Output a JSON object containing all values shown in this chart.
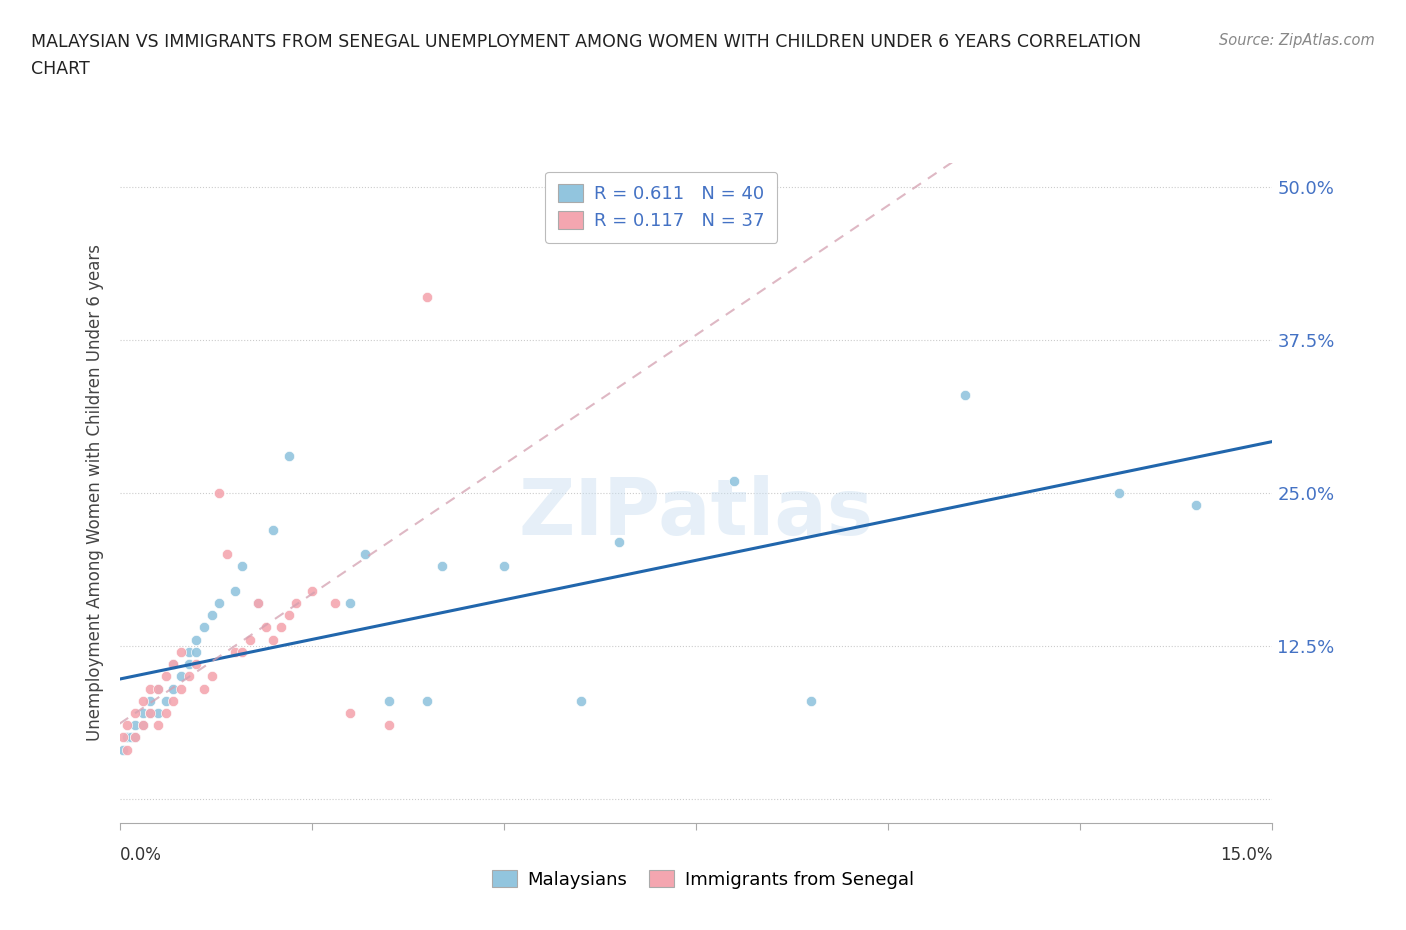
{
  "title_line1": "MALAYSIAN VS IMMIGRANTS FROM SENEGAL UNEMPLOYMENT AMONG WOMEN WITH CHILDREN UNDER 6 YEARS CORRELATION",
  "title_line2": "CHART",
  "source": "Source: ZipAtlas.com",
  "ylabel": "Unemployment Among Women with Children Under 6 years",
  "xlim": [
    0.0,
    0.15
  ],
  "ylim": [
    -0.02,
    0.52
  ],
  "yticks": [
    0.0,
    0.125,
    0.25,
    0.375,
    0.5
  ],
  "ytick_labels": [
    "",
    "12.5%",
    "25.0%",
    "37.5%",
    "50.0%"
  ],
  "watermark": "ZIPatlas",
  "blue_R": 0.611,
  "blue_N": 40,
  "pink_R": 0.117,
  "pink_N": 37,
  "blue_color": "#92c5de",
  "pink_color": "#f4a6b0",
  "blue_line_color": "#2166ac",
  "pink_line_color": "#d4a0b0",
  "blue_x": [
    0.0005,
    0.001,
    0.0015,
    0.002,
    0.002,
    0.003,
    0.003,
    0.004,
    0.004,
    0.005,
    0.005,
    0.006,
    0.007,
    0.007,
    0.008,
    0.009,
    0.009,
    0.01,
    0.01,
    0.011,
    0.012,
    0.013,
    0.015,
    0.016,
    0.018,
    0.02,
    0.022,
    0.03,
    0.032,
    0.035,
    0.04,
    0.042,
    0.05,
    0.06,
    0.065,
    0.08,
    0.09,
    0.11,
    0.13,
    0.14
  ],
  "blue_y": [
    0.04,
    0.05,
    0.05,
    0.06,
    0.05,
    0.06,
    0.07,
    0.07,
    0.08,
    0.07,
    0.09,
    0.08,
    0.09,
    0.11,
    0.1,
    0.11,
    0.12,
    0.13,
    0.12,
    0.14,
    0.15,
    0.16,
    0.17,
    0.19,
    0.16,
    0.22,
    0.28,
    0.16,
    0.2,
    0.08,
    0.08,
    0.19,
    0.19,
    0.08,
    0.21,
    0.26,
    0.08,
    0.33,
    0.25,
    0.24
  ],
  "pink_x": [
    0.0005,
    0.001,
    0.001,
    0.002,
    0.002,
    0.003,
    0.003,
    0.004,
    0.004,
    0.005,
    0.005,
    0.006,
    0.006,
    0.007,
    0.007,
    0.008,
    0.008,
    0.009,
    0.01,
    0.011,
    0.012,
    0.013,
    0.014,
    0.015,
    0.016,
    0.017,
    0.018,
    0.019,
    0.02,
    0.021,
    0.022,
    0.023,
    0.025,
    0.028,
    0.03,
    0.035,
    0.04
  ],
  "pink_y": [
    0.05,
    0.04,
    0.06,
    0.05,
    0.07,
    0.06,
    0.08,
    0.07,
    0.09,
    0.06,
    0.09,
    0.07,
    0.1,
    0.08,
    0.11,
    0.09,
    0.12,
    0.1,
    0.11,
    0.09,
    0.1,
    0.25,
    0.2,
    0.12,
    0.12,
    0.13,
    0.16,
    0.14,
    0.13,
    0.14,
    0.15,
    0.16,
    0.17,
    0.16,
    0.07,
    0.06,
    0.41
  ]
}
